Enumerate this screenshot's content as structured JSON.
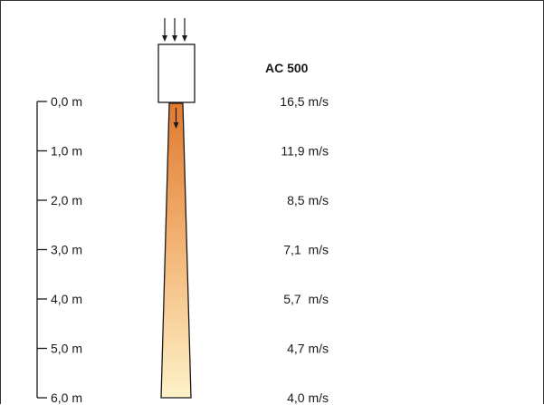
{
  "model": "AC 500",
  "rows": [
    {
      "distance": "0,0 m",
      "speed": "16,5 m/s",
      "distance_m": 0,
      "speed_ms": 16.5
    },
    {
      "distance": "1,0 m",
      "speed": "11,9 m/s",
      "distance_m": 1,
      "speed_ms": 11.9
    },
    {
      "distance": "2,0 m",
      "speed": "8,5 m/s",
      "distance_m": 2,
      "speed_ms": 8.5
    },
    {
      "distance": "3,0 m",
      "speed": "7,1  m/s",
      "distance_m": 3,
      "speed_ms": 7.1
    },
    {
      "distance": "4,0 m",
      "speed": "5,7  m/s",
      "distance_m": 4,
      "speed_ms": 5.7
    },
    {
      "distance": "5,0 m",
      "speed": "4,7 m/s",
      "distance_m": 5,
      "speed_ms": 4.7
    },
    {
      "distance": "6,0 m",
      "speed": "4,0 m/s",
      "distance_m": 6,
      "speed_ms": 4.0
    }
  ],
  "colors": {
    "jet_top": "#e07a30",
    "jet_mid": "#f2b070",
    "jet_bottom": "#fdf2c8",
    "stroke": "#1a1a1a"
  }
}
